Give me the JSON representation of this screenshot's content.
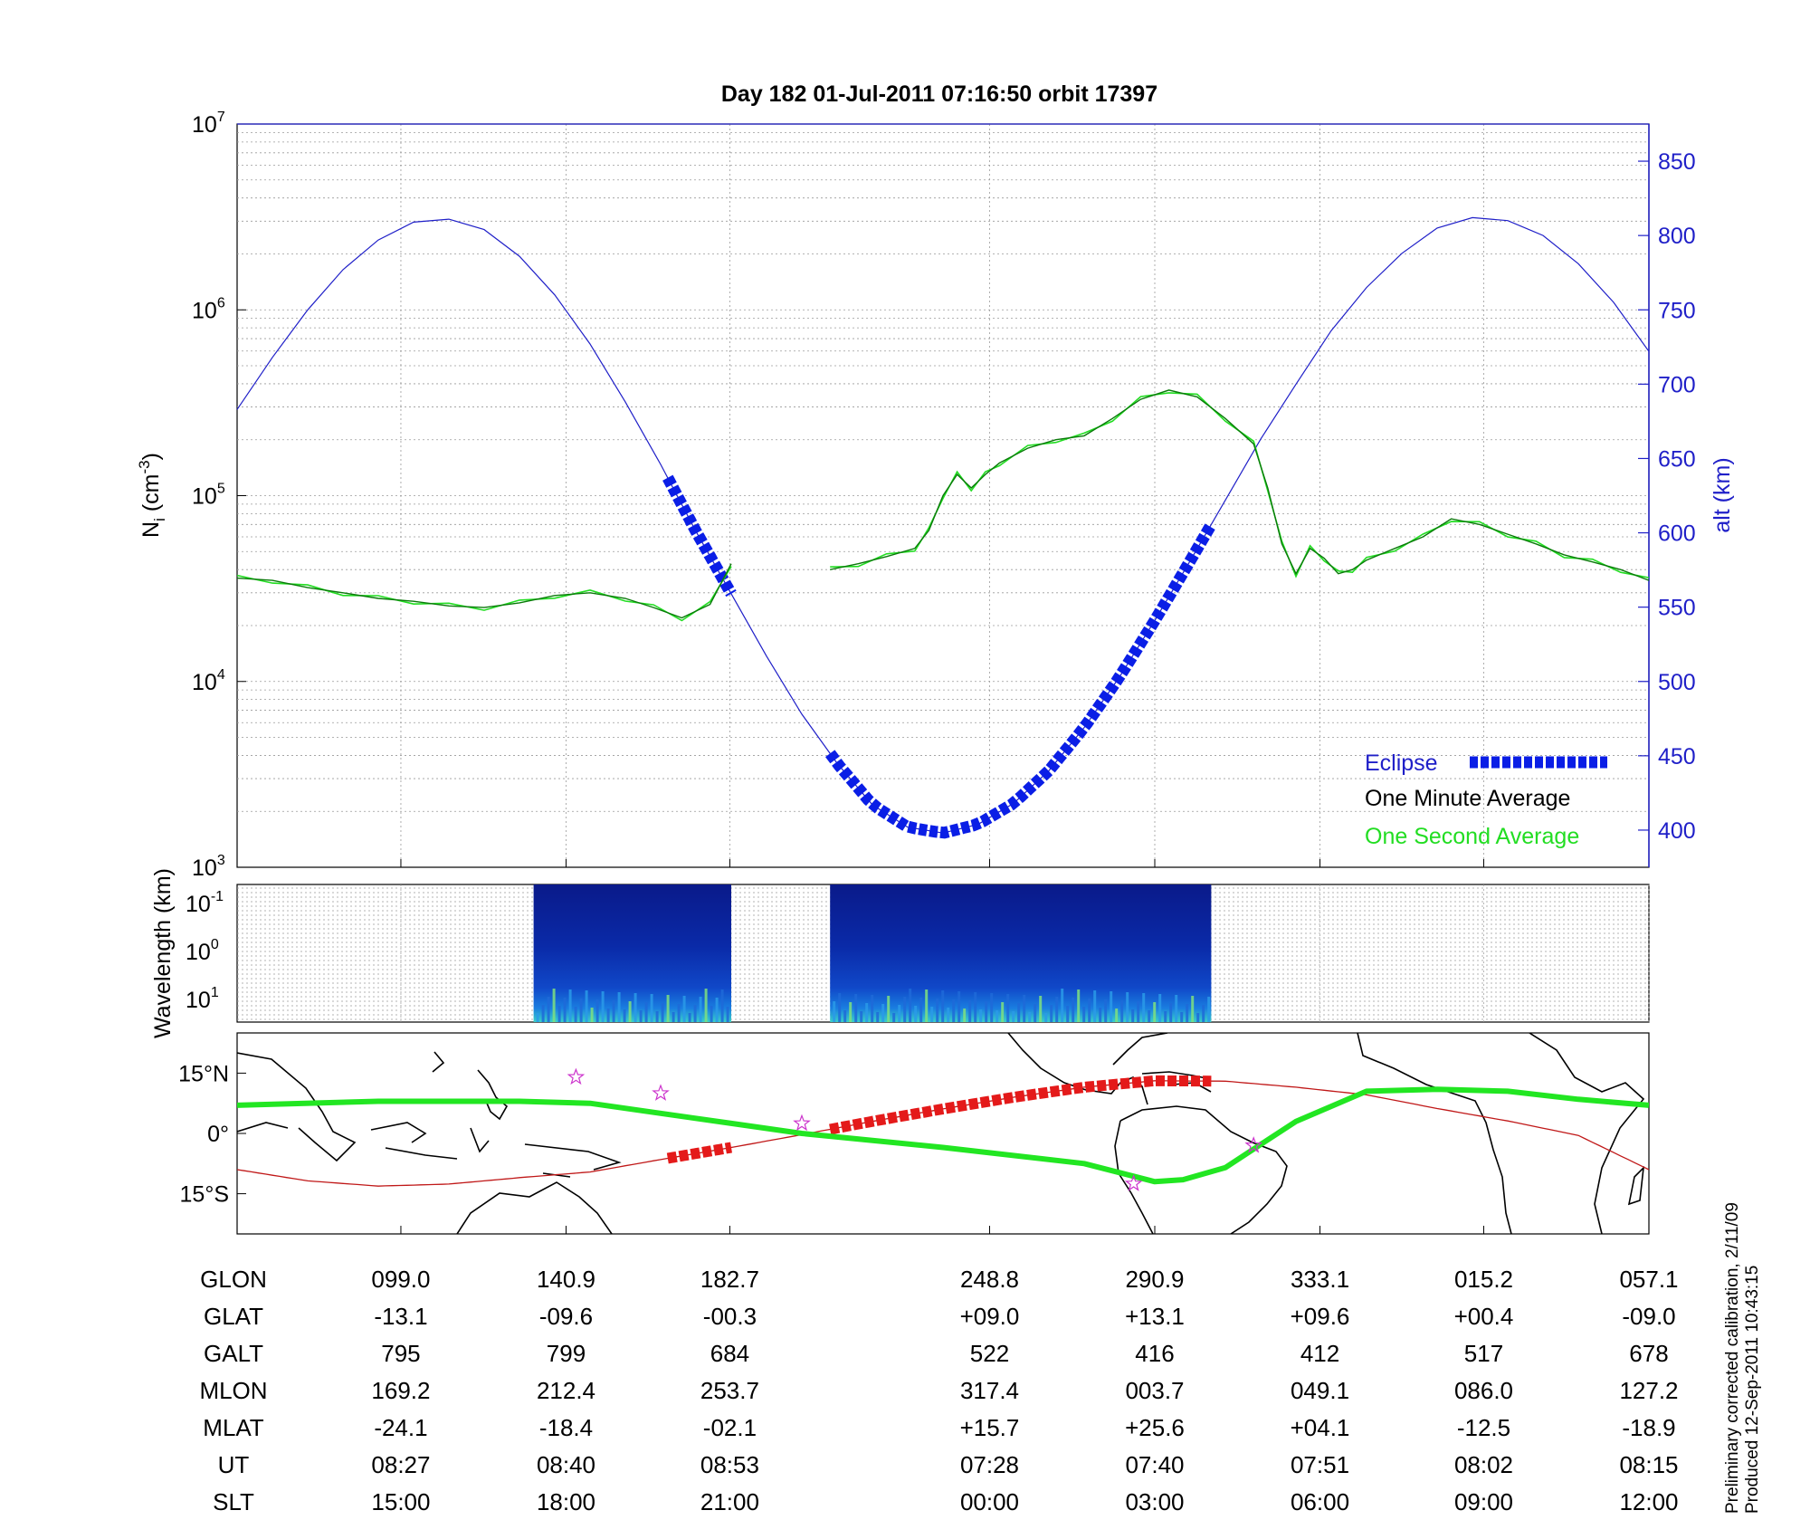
{
  "title": "Day 182  01-Jul-2011 07:16:50   orbit 17397",
  "side_note": [
    "Preliminary corrected calibration, 2/11/09",
    "Produced 12-Sep-2011 10:43:15"
  ],
  "colors": {
    "alt_axis": "#1f1fc8",
    "eclipse": "#0a1ee6",
    "one_minute": "#000000",
    "one_second": "#22dd22",
    "density": "#0a7a0a",
    "track": "#c01818",
    "footprint": "#22e622",
    "stars": "#cc33cc"
  },
  "chart_data": [
    {
      "type": "line",
      "name": "density-altitude",
      "ylabel_left": "N_i (cm^-3)",
      "ylabel_right": "alt (km)",
      "y_left_scale": "log",
      "ylim_left": [
        1000,
        10000000
      ],
      "ylim_right": [
        375,
        875
      ],
      "left_ticks": [
        {
          "base": "10",
          "exp": "3"
        },
        {
          "base": "10",
          "exp": "4"
        },
        {
          "base": "10",
          "exp": "5"
        },
        {
          "base": "10",
          "exp": "6"
        },
        {
          "base": "10",
          "exp": "7"
        }
      ],
      "right_ticks": [
        400,
        450,
        500,
        550,
        600,
        650,
        700,
        750,
        800,
        850
      ],
      "grid": true,
      "legend_position": "bottom-right",
      "legend": [
        "Eclipse",
        "One Minute Average",
        "One Second Average"
      ],
      "x_index_range": [
        0,
        100
      ],
      "altitude_km": {
        "x": [
          0,
          2.5,
          5,
          7.5,
          10,
          12.5,
          15,
          17.5,
          20,
          22.5,
          25,
          27.5,
          30,
          32.5,
          35,
          37.5,
          40,
          42.5,
          45,
          47.5,
          50,
          52.5,
          55,
          57.5,
          60,
          62.5,
          65,
          67.5,
          70,
          72.5,
          75,
          77.5,
          80,
          82.5,
          85,
          87.5,
          90,
          92.5,
          95,
          97.5,
          100
        ],
        "y": [
          683,
          718,
          750,
          777,
          797,
          809,
          811,
          804,
          786,
          760,
          727,
          688,
          646,
          601,
          559,
          517,
          478,
          445,
          417,
          402,
          398,
          404,
          418,
          440,
          469,
          503,
          541,
          581,
          622,
          663,
          700,
          736,
          765,
          788,
          805,
          812,
          810,
          800,
          781,
          755,
          722
        ]
      },
      "eclipse_segments_x": [
        [
          30.5,
          35
        ],
        [
          42,
          69
        ]
      ],
      "density_one_minute": {
        "segments": [
          {
            "x": [
              0,
              2.5,
              5,
              7.5,
              10,
              12.5,
              15,
              17.5,
              20,
              22.5,
              25,
              27.5,
              29.5,
              31.5,
              33.5,
              35
            ],
            "y": [
              36000,
              35000,
              32000,
              30000,
              28000,
              27000,
              25500,
              25000,
              26500,
              29000,
              30000,
              28000,
              25000,
              22000,
              26000,
              43000
            ]
          },
          {
            "x": [
              42,
              44,
              46,
              48,
              49,
              50,
              51,
              52,
              53,
              54,
              56,
              58,
              60,
              62,
              64,
              66,
              68,
              70,
              72,
              73,
              74,
              75,
              76,
              77,
              78,
              79,
              80,
              82,
              84,
              86,
              88,
              90,
              92,
              94,
              96,
              98,
              100
            ],
            "y": [
              40000,
              43000,
              47000,
              52000,
              65000,
              100000,
              130000,
              110000,
              130000,
              150000,
              180000,
              200000,
              210000,
              260000,
              330000,
              370000,
              340000,
              260000,
              190000,
              110000,
              55000,
              38000,
              52000,
              46000,
              38000,
              40000,
              45000,
              52000,
              60000,
              75000,
              70000,
              62000,
              55000,
              48000,
              44000,
              40000,
              35000
            ]
          }
        ]
      }
    },
    {
      "type": "heatmap",
      "name": "spectrogram",
      "ylabel": "Wavelength (km)",
      "y_ticks": [
        {
          "base": "10",
          "exp": "-1"
        },
        {
          "base": "10",
          "exp": "0"
        },
        {
          "base": "10",
          "exp": "1"
        }
      ],
      "data_blocks_x": [
        [
          21,
          35
        ],
        [
          42,
          69
        ]
      ]
    },
    {
      "type": "line",
      "name": "ground-track-map",
      "lat_ticks": [
        "15°N",
        "0°",
        "15°S"
      ],
      "ylim": [
        -25,
        25
      ],
      "track_x": [
        0,
        5,
        10,
        15,
        20,
        25,
        30,
        35,
        40,
        45,
        50,
        55,
        60,
        65,
        70,
        75,
        80,
        85,
        90,
        95,
        100
      ],
      "track_lat": [
        -9.0,
        -11.8,
        -13.1,
        -12.6,
        -11.0,
        -9.6,
        -6.5,
        -3.5,
        -0.3,
        3.0,
        6.1,
        9.0,
        11.5,
        13.1,
        13.0,
        11.5,
        9.6,
        6.2,
        3.1,
        -0.5,
        -9.0
      ],
      "footprint_x": [
        0,
        10,
        20,
        25,
        30,
        35,
        40,
        50,
        60,
        65,
        67,
        70,
        75,
        80,
        85,
        90,
        95,
        100
      ],
      "footprint_lat": [
        7.0,
        8.0,
        8.0,
        7.5,
        5.0,
        2.5,
        0.0,
        -3.5,
        -7.5,
        -12.0,
        -11.5,
        -8.5,
        3.0,
        10.5,
        11.0,
        10.5,
        8.5,
        7.0
      ],
      "stars_xy": [
        [
          24,
          14
        ],
        [
          30,
          10
        ],
        [
          40,
          2.5
        ],
        [
          63.5,
          -12.5
        ],
        [
          72,
          -3
        ]
      ]
    }
  ],
  "ephemeris": {
    "row_labels": [
      "GLON",
      "GLAT",
      "GALT",
      "MLON",
      "MLAT",
      "UT",
      "SLT"
    ],
    "columns": [
      {
        "x": 11.6,
        "values": [
          "099.0",
          "-13.1",
          "795",
          "169.2",
          "-24.1",
          "08:27",
          "15:00"
        ]
      },
      {
        "x": 23.3,
        "values": [
          "140.9",
          "-09.6",
          "799",
          "212.4",
          "-18.4",
          "08:40",
          "18:00"
        ]
      },
      {
        "x": 34.9,
        "values": [
          "182.7",
          "-00.3",
          "684",
          "253.7",
          "-02.1",
          "08:53",
          "21:00"
        ]
      },
      {
        "x": 53.3,
        "values": [
          "248.8",
          "+09.0",
          "522",
          "317.4",
          "+15.7",
          "07:28",
          "00:00"
        ]
      },
      {
        "x": 65,
        "values": [
          "290.9",
          "+13.1",
          "416",
          "003.7",
          "+25.6",
          "07:40",
          "03:00"
        ]
      },
      {
        "x": 76.7,
        "values": [
          "333.1",
          "+09.6",
          "412",
          "049.1",
          "+04.1",
          "07:51",
          "06:00"
        ]
      },
      {
        "x": 88.3,
        "values": [
          "015.2",
          "+00.4",
          "517",
          "086.0",
          "-12.5",
          "08:02",
          "09:00"
        ]
      },
      {
        "x": 100,
        "values": [
          "057.1",
          "-09.0",
          "678",
          "127.2",
          "-18.9",
          "08:15",
          "12:00"
        ]
      }
    ]
  }
}
